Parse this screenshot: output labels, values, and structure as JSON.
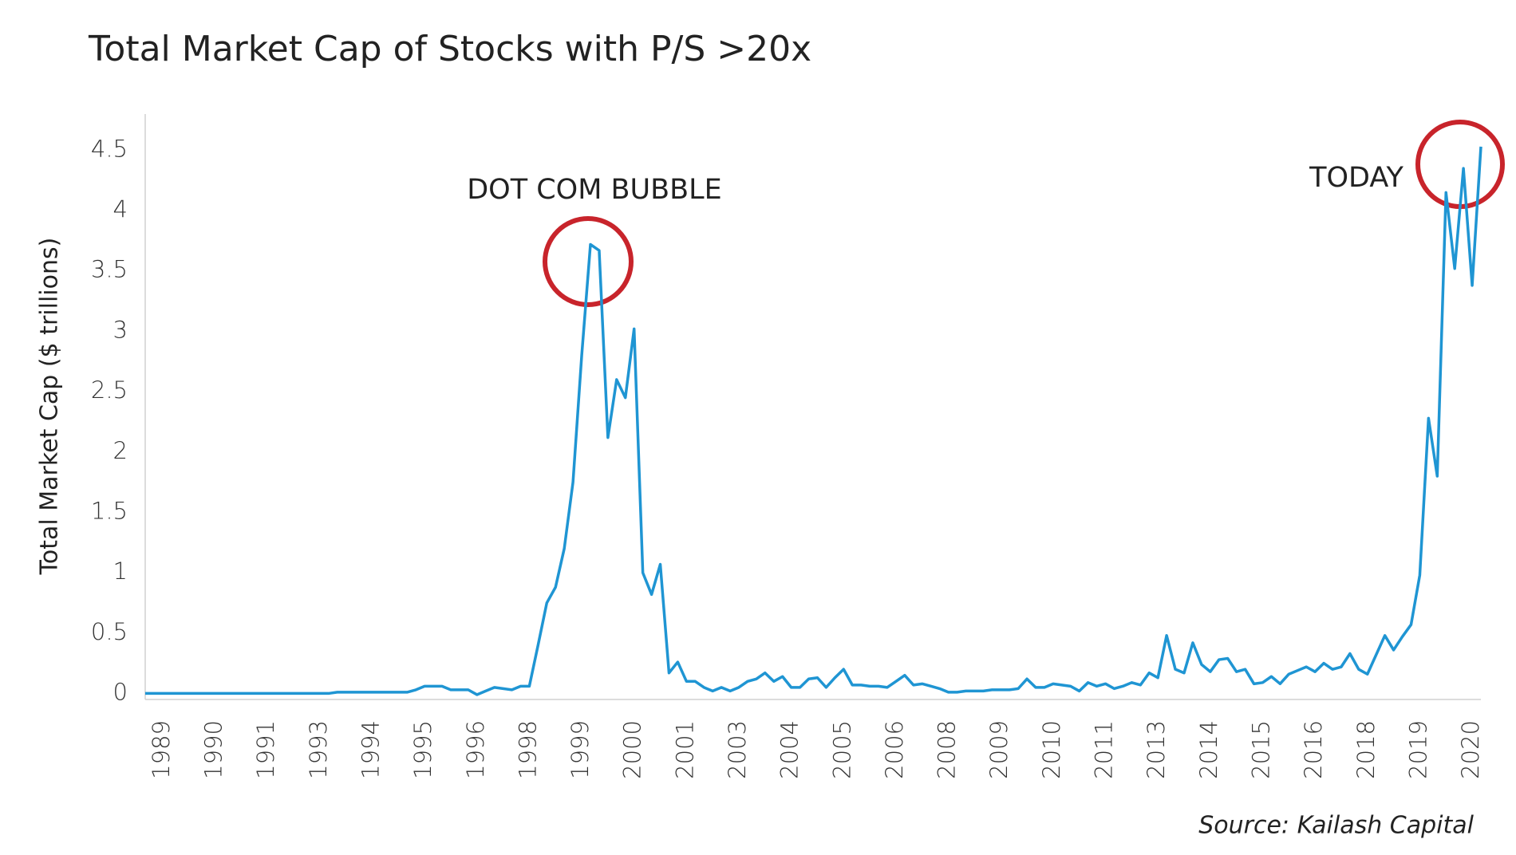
{
  "chart_data": {
    "type": "line",
    "title": "Total Market Cap of Stocks with P/S >20x",
    "ylabel": "Total Market Cap ($ trillions)",
    "annotations": [
      "DOT COM BUBBLE",
      "TODAY"
    ],
    "source": "Source: Kailash Capital",
    "color": "#1f95d3",
    "annotation_color": "#c8242b",
    "ylim": [
      -0.05,
      4.8
    ],
    "yticks": [
      0,
      0.5,
      1,
      1.5,
      2,
      2.5,
      3,
      3.5,
      4,
      4.5
    ],
    "grid": false,
    "categories": [
      null,
      null,
      "1989",
      null,
      null,
      null,
      null,
      null,
      "1990",
      null,
      null,
      null,
      null,
      null,
      "1991",
      null,
      null,
      null,
      null,
      null,
      "1993",
      null,
      null,
      null,
      null,
      null,
      "1994",
      null,
      null,
      null,
      null,
      null,
      "1995",
      null,
      null,
      null,
      null,
      null,
      "1996",
      null,
      null,
      null,
      null,
      null,
      "1998",
      null,
      null,
      null,
      null,
      null,
      "1999",
      null,
      null,
      null,
      null,
      null,
      "2000",
      null,
      null,
      null,
      null,
      null,
      "2001",
      null,
      null,
      null,
      null,
      null,
      "2003",
      null,
      null,
      null,
      null,
      null,
      "2004",
      null,
      null,
      null,
      null,
      null,
      "2005",
      null,
      null,
      null,
      null,
      null,
      "2006",
      null,
      null,
      null,
      null,
      null,
      "2008",
      null,
      null,
      null,
      null,
      null,
      "2009",
      null,
      null,
      null,
      null,
      null,
      "2010",
      null,
      null,
      null,
      null,
      null,
      "2011",
      null,
      null,
      null,
      null,
      null,
      "2013",
      null,
      null,
      null,
      null,
      null,
      "2014",
      null,
      null,
      null,
      null,
      null,
      "2015",
      null,
      null,
      null,
      null,
      null,
      "2016",
      null,
      null,
      null,
      null,
      null,
      "2018",
      null,
      null,
      null,
      null,
      null,
      "2019",
      null,
      null,
      null,
      null,
      null,
      "2020",
      null
    ],
    "values": [
      0,
      0,
      0,
      0,
      0,
      0,
      0,
      0,
      0,
      0,
      0,
      0,
      0,
      0,
      0,
      0,
      0,
      0,
      0,
      0,
      0,
      0,
      0.01,
      0.01,
      0.01,
      0.01,
      0.01,
      0.01,
      0.01,
      0.01,
      0.01,
      0.03,
      0.06,
      0.06,
      0.06,
      0.03,
      0.03,
      0.03,
      -0.01,
      0.02,
      0.05,
      0.04,
      0.03,
      0.06,
      0.06,
      0.4,
      0.75,
      0.88,
      1.2,
      1.75,
      2.8,
      3.72,
      3.67,
      2.12,
      2.6,
      2.45,
      3.02,
      1.0,
      0.82,
      1.07,
      0.17,
      0.26,
      0.1,
      0.1,
      0.05,
      0.02,
      0.05,
      0.02,
      0.05,
      0.1,
      0.12,
      0.17,
      0.1,
      0.14,
      0.05,
      0.05,
      0.12,
      0.13,
      0.05,
      0.13,
      0.2,
      0.07,
      0.07,
      0.06,
      0.06,
      0.05,
      0.1,
      0.15,
      0.07,
      0.08,
      0.06,
      0.04,
      0.01,
      0.01,
      0.02,
      0.02,
      0.02,
      0.03,
      0.03,
      0.03,
      0.04,
      0.12,
      0.05,
      0.05,
      0.08,
      0.07,
      0.06,
      0.02,
      0.09,
      0.06,
      0.08,
      0.04,
      0.06,
      0.09,
      0.07,
      0.17,
      0.13,
      0.48,
      0.2,
      0.17,
      0.42,
      0.24,
      0.18,
      0.28,
      0.29,
      0.18,
      0.2,
      0.08,
      0.09,
      0.14,
      0.08,
      0.16,
      0.19,
      0.22,
      0.18,
      0.25,
      0.2,
      0.22,
      0.33,
      0.2,
      0.16,
      0.32,
      0.48,
      0.36,
      0.47,
      0.57,
      0.98,
      2.28,
      1.8,
      4.15,
      3.52,
      4.35,
      3.38,
      4.53
    ]
  }
}
